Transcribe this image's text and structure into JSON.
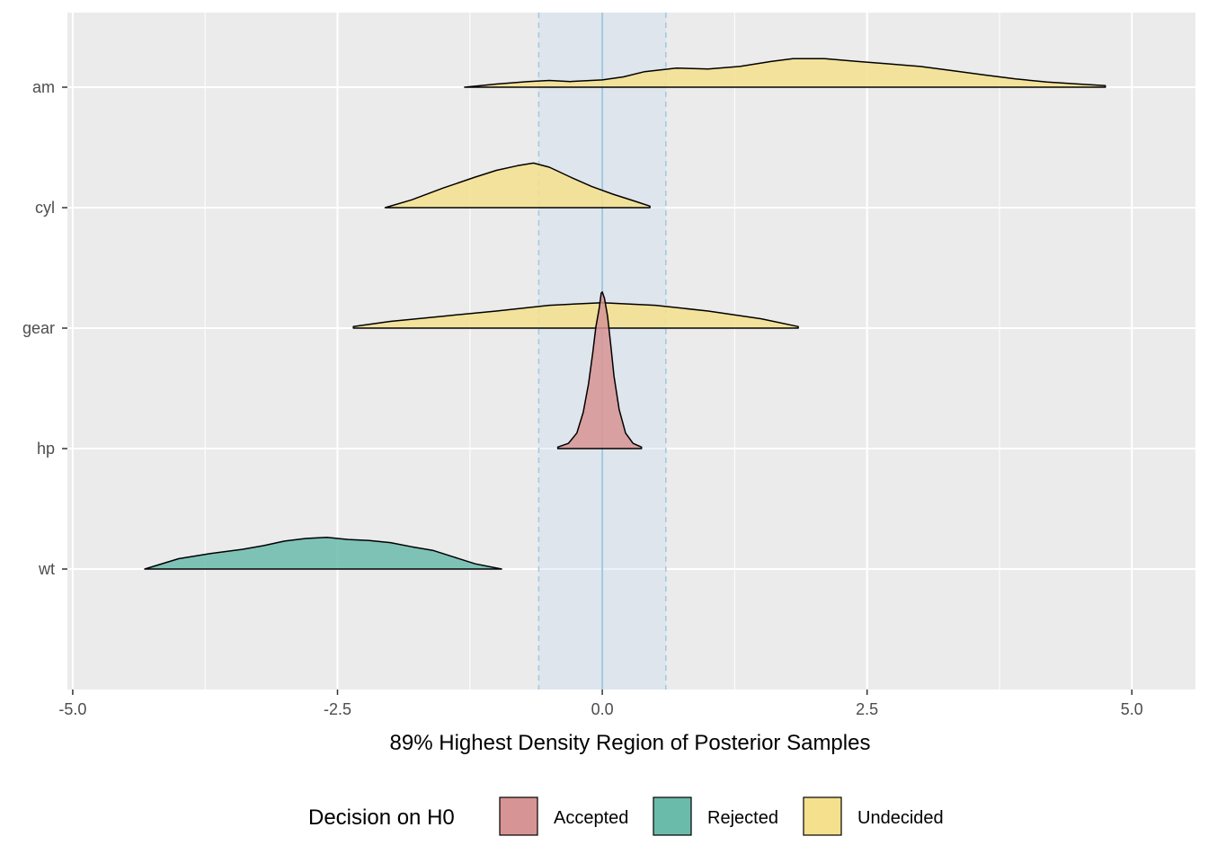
{
  "chart_data": {
    "type": "ridgeline-density",
    "title": "",
    "xlabel": "89% Highest Density Region of Posterior Samples",
    "ylabel": "",
    "xlim": [
      -5.05,
      5.6
    ],
    "x_ticks": [
      -5.0,
      -2.5,
      0.0,
      2.5,
      5.0
    ],
    "x_tick_labels": [
      "-5.0",
      "-2.5",
      "0.0",
      "2.5",
      "5.0"
    ],
    "x_minor_ticks": [
      -3.75,
      -1.25,
      1.25,
      3.75
    ],
    "categories": [
      "am",
      "cyl",
      "gear",
      "hp",
      "wt"
    ],
    "grid": true,
    "rope": {
      "low": -0.6,
      "high": 0.6,
      "center": 0.0,
      "fill": "#c6dbef",
      "line_color": "#9ecae1"
    },
    "legend": {
      "title": "Decision on H0",
      "position": "bottom",
      "entries": [
        {
          "label": "Accepted",
          "color": "#d79494"
        },
        {
          "label": "Rejected",
          "color": "#6bbbab"
        },
        {
          "label": "Undecided",
          "color": "#f4e08d"
        }
      ]
    },
    "series": [
      {
        "name": "am",
        "decision": "Undecided",
        "color": "#f4e08d",
        "x": [
          -1.3,
          -1.0,
          -0.7,
          -0.5,
          -0.3,
          0.0,
          0.2,
          0.4,
          0.7,
          1.0,
          1.3,
          1.6,
          1.8,
          2.1,
          2.4,
          2.7,
          3.0,
          3.3,
          3.6,
          3.9,
          4.2,
          4.5,
          4.75
        ],
        "density": [
          0.0,
          0.06,
          0.11,
          0.13,
          0.11,
          0.14,
          0.2,
          0.3,
          0.37,
          0.35,
          0.4,
          0.5,
          0.55,
          0.55,
          0.5,
          0.45,
          0.4,
          0.32,
          0.24,
          0.16,
          0.1,
          0.06,
          0.03
        ]
      },
      {
        "name": "cyl",
        "decision": "Undecided",
        "color": "#f4e08d",
        "x": [
          -2.05,
          -1.8,
          -1.5,
          -1.2,
          -1.0,
          -0.8,
          -0.65,
          -0.5,
          -0.3,
          -0.1,
          0.1,
          0.3,
          0.45
        ],
        "density": [
          0.0,
          0.15,
          0.38,
          0.59,
          0.72,
          0.81,
          0.86,
          0.78,
          0.59,
          0.41,
          0.26,
          0.13,
          0.03
        ]
      },
      {
        "name": "gear",
        "decision": "Undecided",
        "color": "#f4e08d",
        "x": [
          -2.35,
          -2.0,
          -1.5,
          -1.0,
          -0.5,
          0.0,
          0.5,
          1.0,
          1.5,
          1.85
        ],
        "density": [
          0.03,
          0.13,
          0.23,
          0.33,
          0.44,
          0.49,
          0.44,
          0.33,
          0.18,
          0.03
        ]
      },
      {
        "name": "hp",
        "decision": "Accepted",
        "color": "#d79494",
        "x": [
          -0.42,
          -0.32,
          -0.24,
          -0.18,
          -0.13,
          -0.09,
          -0.06,
          -0.03,
          -0.01,
          0.0,
          0.02,
          0.05,
          0.08,
          0.11,
          0.16,
          0.22,
          0.29,
          0.37
        ],
        "density": [
          0.03,
          0.1,
          0.3,
          0.7,
          1.25,
          1.85,
          2.35,
          2.7,
          3.0,
          3.02,
          2.9,
          2.55,
          2.0,
          1.4,
          0.75,
          0.3,
          0.1,
          0.03
        ]
      },
      {
        "name": "wt",
        "decision": "Rejected",
        "color": "#6bbbab",
        "x": [
          -4.32,
          -4.0,
          -3.7,
          -3.4,
          -3.2,
          -3.0,
          -2.8,
          -2.6,
          -2.4,
          -2.2,
          -2.0,
          -1.8,
          -1.6,
          -1.4,
          -1.2,
          -0.95
        ],
        "density": [
          0.0,
          0.2,
          0.3,
          0.38,
          0.45,
          0.54,
          0.59,
          0.61,
          0.57,
          0.55,
          0.51,
          0.43,
          0.36,
          0.23,
          0.1,
          0.0
        ]
      }
    ]
  }
}
